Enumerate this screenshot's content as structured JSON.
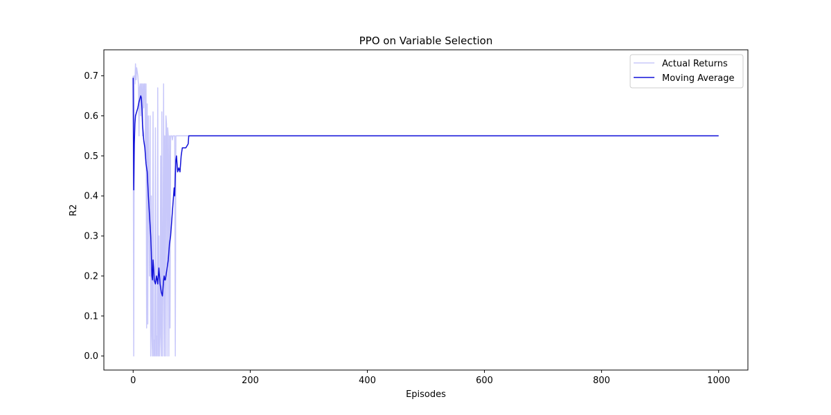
{
  "chart_data": {
    "type": "line",
    "title": "PPO on Variable Selection",
    "xlabel": "Episodes",
    "ylabel": "R2",
    "xlim": [
      -50,
      1050
    ],
    "ylim": [
      -0.035,
      0.765
    ],
    "xticks": [
      0,
      200,
      400,
      600,
      800,
      1000
    ],
    "yticks": [
      0.0,
      0.1,
      0.2,
      0.3,
      0.4,
      0.5,
      0.6,
      0.7
    ],
    "xtick_labels": [
      "0",
      "200",
      "400",
      "600",
      "800",
      "1000"
    ],
    "ytick_labels": [
      "0.0",
      "0.1",
      "0.2",
      "0.3",
      "0.4",
      "0.5",
      "0.6",
      "0.7"
    ],
    "grid": false,
    "legend_position": "top-right",
    "series": [
      {
        "name": "Actual Returns",
        "color": "#c8c8fa",
        "x": [
          0,
          1,
          2,
          3,
          4,
          5,
          6,
          7,
          8,
          9,
          10,
          11,
          12,
          13,
          14,
          15,
          16,
          17,
          18,
          19,
          20,
          21,
          22,
          23,
          24,
          25,
          26,
          27,
          28,
          29,
          30,
          31,
          32,
          33,
          34,
          35,
          36,
          37,
          38,
          39,
          40,
          41,
          42,
          43,
          44,
          45,
          46,
          47,
          48,
          49,
          50,
          51,
          52,
          53,
          54,
          55,
          56,
          57,
          58,
          59,
          60,
          61,
          62,
          63,
          64,
          65,
          66,
          67,
          68,
          69,
          70,
          71,
          72,
          73,
          74,
          75,
          76,
          77,
          78,
          79,
          80,
          81,
          82,
          83,
          84,
          85,
          86,
          87,
          88,
          89,
          90,
          100,
          1000
        ],
        "y": [
          0.7,
          0.0,
          0.7,
          0.68,
          0.73,
          0.69,
          0.72,
          0.71,
          0.7,
          0.68,
          0.55,
          0.67,
          0.68,
          0.6,
          0.68,
          0.68,
          0.55,
          0.68,
          0.62,
          0.68,
          0.68,
          0.5,
          0.68,
          0.07,
          0.63,
          0.08,
          0.6,
          0.4,
          0.2,
          0.6,
          0.0,
          0.4,
          0.05,
          0.0,
          0.61,
          0.0,
          0.04,
          0.0,
          0.57,
          0.0,
          0.05,
          0.0,
          0.67,
          0.0,
          0.3,
          0.0,
          0.05,
          0.5,
          0.0,
          0.61,
          0.0,
          0.2,
          0.68,
          0.0,
          0.55,
          0.0,
          0.6,
          0.58,
          0.0,
          0.57,
          0.55,
          0.0,
          0.55,
          0.07,
          0.55,
          0.55,
          0.55,
          0.54,
          0.55,
          0.55,
          0.55,
          0.55,
          0.0,
          0.55,
          0.55,
          0.55,
          0.55,
          0.55,
          0.55,
          0.55,
          0.55,
          0.55,
          0.55,
          0.55,
          0.55,
          0.55,
          0.55,
          0.55,
          0.55,
          0.55,
          0.55,
          0.55,
          0.55
        ]
      },
      {
        "name": "Moving Average",
        "color": "#1010d8",
        "x": [
          0,
          1,
          2,
          3,
          4,
          5,
          6,
          8,
          10,
          12,
          13,
          14,
          15,
          16,
          17,
          18,
          20,
          22,
          24,
          26,
          28,
          30,
          31,
          32,
          33,
          34,
          35,
          36,
          38,
          40,
          42,
          44,
          45,
          46,
          48,
          50,
          52,
          53,
          54,
          55,
          56,
          58,
          60,
          62,
          64,
          66,
          68,
          70,
          71,
          72,
          73,
          74,
          75,
          76,
          78,
          80,
          82,
          84,
          86,
          88,
          90,
          92,
          94,
          95,
          96,
          97,
          100,
          1000
        ],
        "y": [
          0.695,
          0.415,
          0.53,
          0.58,
          0.6,
          0.605,
          0.61,
          0.62,
          0.635,
          0.645,
          0.65,
          0.645,
          0.62,
          0.58,
          0.56,
          0.54,
          0.52,
          0.48,
          0.46,
          0.4,
          0.35,
          0.3,
          0.26,
          0.2,
          0.19,
          0.24,
          0.22,
          0.19,
          0.18,
          0.2,
          0.18,
          0.22,
          0.2,
          0.18,
          0.16,
          0.15,
          0.19,
          0.2,
          0.19,
          0.19,
          0.2,
          0.22,
          0.24,
          0.28,
          0.3,
          0.34,
          0.38,
          0.42,
          0.4,
          0.45,
          0.49,
          0.5,
          0.48,
          0.46,
          0.47,
          0.46,
          0.5,
          0.52,
          0.52,
          0.52,
          0.52,
          0.525,
          0.53,
          0.55,
          0.55,
          0.55,
          0.55,
          0.55
        ]
      }
    ]
  }
}
